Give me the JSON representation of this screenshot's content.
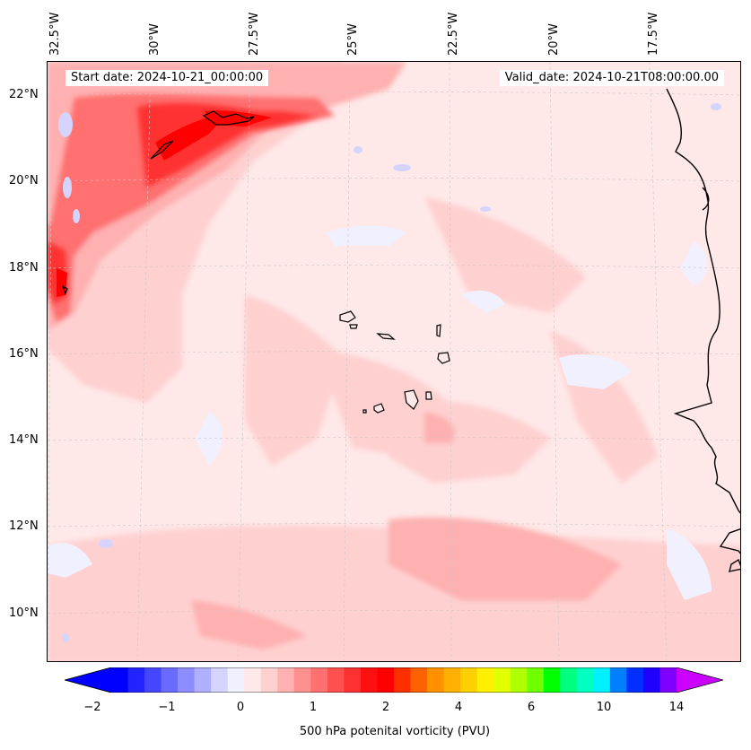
{
  "map": {
    "start_date": "Start date: 2024-10-21_00:00:00",
    "valid_date": "Valid_date: 2024-10-21T08:00:00.00",
    "lon_labels": [
      "32.5°W",
      "30°W",
      "27.5°W",
      "25°W",
      "22.5°W",
      "20°W",
      "17.5°W"
    ],
    "lat_labels": [
      "22°N",
      "20°N",
      "18°N",
      "16°N",
      "14°N",
      "12°N",
      "10°N"
    ]
  },
  "colorbar": {
    "ticks": [
      "−2",
      "−1",
      "0",
      "1",
      "2",
      "4",
      "6",
      "10",
      "14"
    ],
    "label": "500 hPa potenital vorticity (PVU)",
    "colors": [
      "#0000ff",
      "#2323ff",
      "#4646ff",
      "#6a6aff",
      "#8d8dff",
      "#b0b0ff",
      "#d4d4ff",
      "#f0f0ff",
      "#ffe8e8",
      "#ffd0d0",
      "#ffb0b0",
      "#ff9090",
      "#ff7070",
      "#ff5050",
      "#ff3030",
      "#ff1010",
      "#ff0000",
      "#ff3000",
      "#ff6000",
      "#ff9000",
      "#ffb000",
      "#ffd000",
      "#fff000",
      "#e0ff00",
      "#b0ff00",
      "#70ff00",
      "#00ff00",
      "#00ff80",
      "#00ffc0",
      "#00f0ff",
      "#0080ff",
      "#0030ff",
      "#2000ff",
      "#8000ff"
    ],
    "min_arrow_color": "#0000ff",
    "max_arrow_color": "#cc00ff"
  }
}
